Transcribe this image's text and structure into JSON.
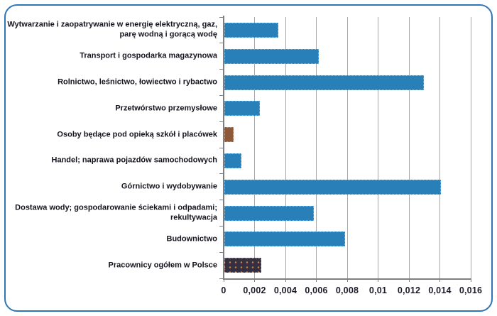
{
  "chart_data": {
    "type": "bar",
    "orientation": "horizontal",
    "title": "",
    "xlabel": "",
    "ylabel": "",
    "categories": [
      "Wytwarzanie i zaopatrywanie w energię elektryczną, gaz, parę wodną i gorącą wodę",
      "Transport i gospodarka magazynowa",
      "Rolnictwo, leśnictwo, łowiectwo i rybactwo",
      "Przetwórstwo przemysłowe",
      "Osoby będące pod opieką szkół i placówek",
      "Handel; naprawa pojazdów samochodowych",
      "Górnictwo i wydobywanie",
      "Dostawa wody; gospodarowanie ściekami i odpadami; rekultywacja",
      "Budownictwo",
      "Pracownicy ogółem w Polsce"
    ],
    "values": [
      0.0035,
      0.0061,
      0.0129,
      0.0023,
      0.0006,
      0.0011,
      0.014,
      0.0058,
      0.0078,
      0.0024
    ],
    "bar_colors": [
      "#2980B9",
      "#2980B9",
      "#2980B9",
      "#2980B9",
      "#8C5A3B",
      "#2980B9",
      "#2980B9",
      "#2980B9",
      "#2980B9",
      "#362F3F"
    ],
    "bar_patterns": [
      null,
      null,
      null,
      null,
      null,
      null,
      null,
      null,
      null,
      "dots"
    ],
    "xlim": [
      0,
      0.016
    ],
    "x_ticks": [
      0,
      0.002,
      0.004,
      0.006,
      0.008,
      0.01,
      0.012,
      0.014,
      0.016
    ],
    "x_tick_labels": [
      "0",
      "0,002",
      "0,004",
      "0,006",
      "0,008",
      "0,01",
      "0,012",
      "0,014",
      "0,016"
    ],
    "grid": true,
    "legend": null,
    "colors": {
      "frame_border": "#2E75B6",
      "gridline": "#A6A6A6",
      "axis": "#7F7F7F",
      "text": "#14141E",
      "blue_bar": "#2980B9",
      "brown_bar": "#8C5A3B",
      "dark_bar": "#362F3F",
      "dark_bar_dot": "#C8824F"
    }
  }
}
